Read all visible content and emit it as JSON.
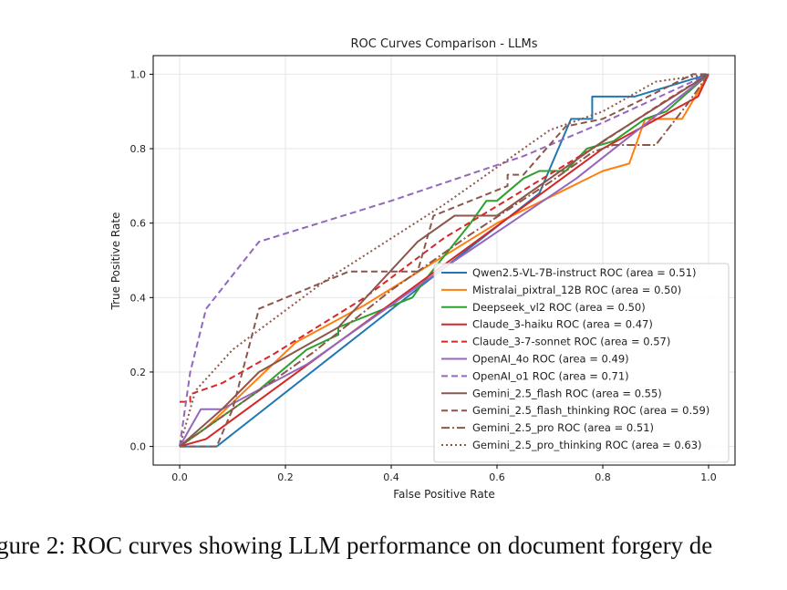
{
  "caption": "gure 2: ROC curves showing LLM performance on document forgery de",
  "chart_data": {
    "type": "line",
    "title": "ROC Curves Comparison - LLMs",
    "xlabel": "False Positive Rate",
    "ylabel": "True Positive Rate",
    "xlim": [
      -0.05,
      1.05
    ],
    "ylim": [
      -0.05,
      1.05
    ],
    "xticks": [
      "0.0",
      "0.2",
      "0.4",
      "0.6",
      "0.8",
      "1.0"
    ],
    "yticks": [
      "0.0",
      "0.2",
      "0.4",
      "0.6",
      "0.8",
      "1.0"
    ],
    "grid": true,
    "legend_position": "lower right",
    "series": [
      {
        "name": "Qwen2.5-VL-7B-instruct ROC (area = 0.51)",
        "color": "#1f77b4",
        "dash": "solid",
        "points": [
          [
            0,
            0
          ],
          [
            0.07,
            0
          ],
          [
            0.68,
            0.68
          ],
          [
            0.74,
            0.88
          ],
          [
            0.78,
            0.88
          ],
          [
            0.78,
            0.94
          ],
          [
            0.86,
            0.94
          ],
          [
            1,
            1
          ]
        ]
      },
      {
        "name": "Mistralai_pixtral_12B ROC (area = 0.50)",
        "color": "#ff7f0e",
        "dash": "solid",
        "points": [
          [
            0,
            0
          ],
          [
            0.05,
            0.05
          ],
          [
            0.22,
            0.28
          ],
          [
            0.35,
            0.38
          ],
          [
            0.6,
            0.6
          ],
          [
            0.8,
            0.74
          ],
          [
            0.85,
            0.76
          ],
          [
            0.88,
            0.88
          ],
          [
            0.95,
            0.88
          ],
          [
            1,
            1
          ]
        ]
      },
      {
        "name": "Deepseek_vl2 ROC (area = 0.50)",
        "color": "#2ca02c",
        "dash": "solid",
        "points": [
          [
            0,
            0
          ],
          [
            0.14,
            0.14
          ],
          [
            0.24,
            0.26
          ],
          [
            0.3,
            0.3
          ],
          [
            0.3,
            0.32
          ],
          [
            0.44,
            0.4
          ],
          [
            0.46,
            0.44
          ],
          [
            0.55,
            0.6
          ],
          [
            0.58,
            0.66
          ],
          [
            0.6,
            0.66
          ],
          [
            0.65,
            0.72
          ],
          [
            0.68,
            0.74
          ],
          [
            0.73,
            0.74
          ],
          [
            0.77,
            0.8
          ],
          [
            0.82,
            0.82
          ],
          [
            0.88,
            0.88
          ],
          [
            0.92,
            0.9
          ],
          [
            1,
            1
          ]
        ]
      },
      {
        "name": "Claude_3-haiku ROC (area = 0.47)",
        "color": "#d62728",
        "dash": "solid",
        "points": [
          [
            0,
            0
          ],
          [
            0.05,
            0.02
          ],
          [
            0.8,
            0.8
          ],
          [
            0.98,
            0.94
          ],
          [
            1,
            1
          ]
        ]
      },
      {
        "name": "Claude_3-7-sonnet ROC (area = 0.57)",
        "color": "#d62728",
        "dash": "dashed",
        "points": [
          [
            0,
            0.12
          ],
          [
            0.02,
            0.12
          ],
          [
            0.02,
            0.14
          ],
          [
            0.08,
            0.17
          ],
          [
            0.18,
            0.25
          ],
          [
            0.35,
            0.4
          ],
          [
            0.5,
            0.56
          ],
          [
            0.64,
            0.68
          ],
          [
            0.78,
            0.8
          ],
          [
            0.92,
            0.93
          ],
          [
            1,
            1
          ]
        ]
      },
      {
        "name": "OpenAI_4o ROC (area = 0.49)",
        "color": "#9467bd",
        "dash": "solid",
        "points": [
          [
            0,
            0
          ],
          [
            0.04,
            0.1
          ],
          [
            0.08,
            0.1
          ],
          [
            0.24,
            0.22
          ],
          [
            0.5,
            0.48
          ],
          [
            0.75,
            0.72
          ],
          [
            1,
            1
          ]
        ]
      },
      {
        "name": "OpenAI_o1 ROC (area = 0.71)",
        "color": "#9467bd",
        "dash": "dashed",
        "points": [
          [
            0,
            0
          ],
          [
            0.02,
            0.2
          ],
          [
            0.05,
            0.37
          ],
          [
            0.15,
            0.55
          ],
          [
            0.4,
            0.66
          ],
          [
            0.65,
            0.78
          ],
          [
            0.8,
            0.87
          ],
          [
            1,
            1
          ]
        ]
      },
      {
        "name": "Gemini_2.5_flash ROC (area = 0.55)",
        "color": "#8c564b",
        "dash": "solid",
        "points": [
          [
            0,
            0
          ],
          [
            0.08,
            0.1
          ],
          [
            0.15,
            0.2
          ],
          [
            0.3,
            0.32
          ],
          [
            0.45,
            0.55
          ],
          [
            0.52,
            0.62
          ],
          [
            0.6,
            0.62
          ],
          [
            0.8,
            0.82
          ],
          [
            1,
            1
          ]
        ]
      },
      {
        "name": "Gemini_2.5_flash_thinking ROC (area = 0.59)",
        "color": "#8c564b",
        "dash": "dashed",
        "points": [
          [
            0,
            0
          ],
          [
            0.07,
            0
          ],
          [
            0.1,
            0.1
          ],
          [
            0.15,
            0.37
          ],
          [
            0.32,
            0.47
          ],
          [
            0.45,
            0.47
          ],
          [
            0.48,
            0.62
          ],
          [
            0.62,
            0.7
          ],
          [
            0.62,
            0.73
          ],
          [
            0.65,
            0.73
          ],
          [
            0.73,
            0.86
          ],
          [
            0.8,
            0.88
          ],
          [
            0.9,
            0.95
          ],
          [
            0.97,
            1
          ],
          [
            1,
            1
          ]
        ]
      },
      {
        "name": "Gemini_2.5_pro ROC (area = 0.51)",
        "color": "#8c564b",
        "dash": "dashdot",
        "points": [
          [
            0,
            0
          ],
          [
            0.25,
            0.25
          ],
          [
            0.4,
            0.42
          ],
          [
            0.55,
            0.57
          ],
          [
            0.7,
            0.71
          ],
          [
            0.78,
            0.79
          ],
          [
            0.8,
            0.8
          ],
          [
            0.82,
            0.81
          ],
          [
            0.9,
            0.81
          ],
          [
            0.96,
            0.92
          ],
          [
            1,
            1
          ]
        ]
      },
      {
        "name": "Gemini_2.5_pro_thinking ROC (area = 0.63)",
        "color": "#8c564b",
        "dash": "dotted",
        "points": [
          [
            0,
            0
          ],
          [
            0.03,
            0.15
          ],
          [
            0.1,
            0.26
          ],
          [
            0.28,
            0.45
          ],
          [
            0.5,
            0.65
          ],
          [
            0.7,
            0.85
          ],
          [
            0.8,
            0.9
          ],
          [
            0.9,
            0.98
          ],
          [
            1,
            1
          ]
        ]
      }
    ]
  }
}
